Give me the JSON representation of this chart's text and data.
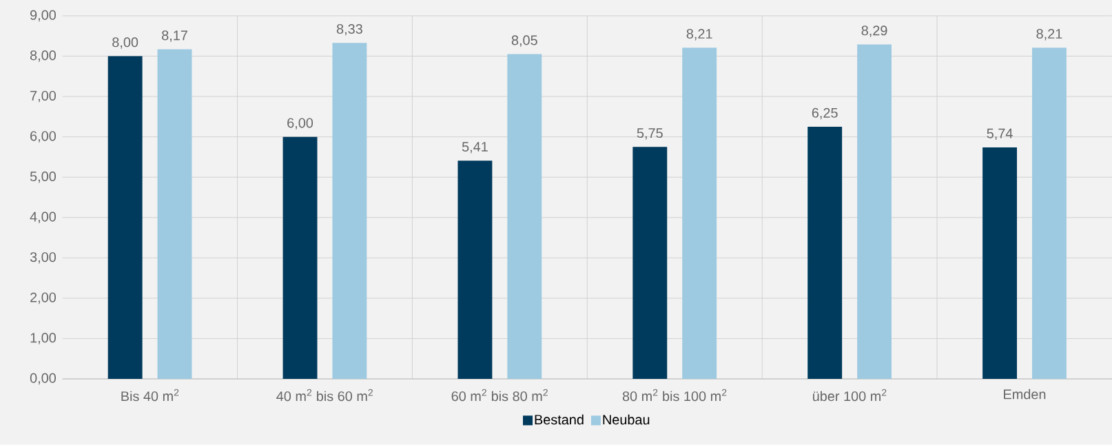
{
  "chart_data": {
    "type": "bar",
    "categories": [
      "Bis 40 m$^{2}$",
      "40 m$^{2}$ bis 60 m$^{2}$",
      "60 m$^{2}$ bis 80 m$^{2}$",
      "80 m$^{2}$ bis 100 m$^{2}$",
      "über 100 m$^{2}$",
      "Emden"
    ],
    "series": [
      {
        "name": "Bestand",
        "color": "#003a5c",
        "values": [
          8.0,
          6.0,
          5.41,
          5.75,
          6.25,
          5.74
        ],
        "value_labels": [
          "8,00",
          "6,00",
          "5,41",
          "5,75",
          "6,25",
          "5,74"
        ]
      },
      {
        "name": "Neubau",
        "color": "#9ecae1",
        "values": [
          8.17,
          8.33,
          8.05,
          8.21,
          8.29,
          8.21
        ],
        "value_labels": [
          "8,17",
          "8,33",
          "8,05",
          "8,21",
          "8,29",
          "8,21"
        ]
      }
    ],
    "ylim": [
      0,
      9
    ],
    "yticks": [
      {
        "value": 0,
        "label": "0,00"
      },
      {
        "value": 1,
        "label": "1,00"
      },
      {
        "value": 2,
        "label": "2,00"
      },
      {
        "value": 3,
        "label": "3,00"
      },
      {
        "value": 4,
        "label": "4,00"
      },
      {
        "value": 5,
        "label": "5,00"
      },
      {
        "value": 6,
        "label": "6,00"
      },
      {
        "value": 7,
        "label": "7,00"
      },
      {
        "value": 8,
        "label": "8,00"
      },
      {
        "value": 9,
        "label": "9,00"
      }
    ],
    "grid": true,
    "legend": "bottom"
  }
}
